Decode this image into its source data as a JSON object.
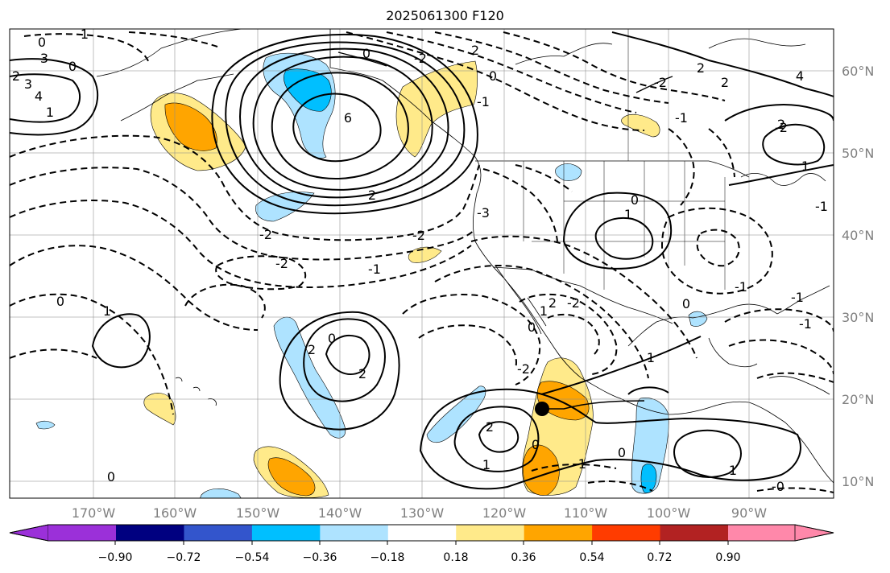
{
  "title": "2025061300 F120",
  "map": {
    "lon_ticks": [
      "170°W",
      "160°W",
      "150°W",
      "140°W",
      "130°W",
      "120°W",
      "110°W",
      "100°W",
      "90°W"
    ],
    "lat_ticks": [
      "60°N",
      "50°N",
      "40°N",
      "30°N",
      "20°N",
      "10°N"
    ],
    "extent": {
      "lon": [
        -180,
        -80
      ],
      "lat": [
        8,
        66
      ]
    },
    "gridlines": true,
    "contour_labels": [
      "1",
      "0",
      "2",
      "3",
      "4",
      "1",
      "0",
      "3",
      "0",
      "-2",
      "2",
      "-1",
      "0",
      "6",
      "2",
      "-2",
      "0",
      "1",
      "2",
      "-2",
      "-3",
      "-2",
      "-1",
      "0",
      "1",
      "2",
      "0",
      "2",
      "-2",
      "0",
      "-2",
      "1",
      "-2",
      "2",
      "0",
      "-1",
      "0",
      "0",
      "1",
      "-1",
      "0",
      "-1",
      "4",
      "2",
      "2",
      "1",
      "-1",
      "-0",
      "1",
      "2",
      "-1",
      "-2",
      "1",
      "-1"
    ],
    "marker": {
      "label": "storm-center",
      "lon": -115.5,
      "lat": 19
    }
  },
  "colorbar": {
    "ticks": [
      "−0.90",
      "−0.72",
      "−0.54",
      "−0.36",
      "−0.18",
      "0.18",
      "0.36",
      "0.54",
      "0.72",
      "0.90"
    ],
    "colors": [
      "#9b30d9",
      "#000080",
      "#3355cc",
      "#00bfff",
      "#aee3ff",
      "#ffffff",
      "#ffea8a",
      "#ffa500",
      "#ff3c00",
      "#b22222",
      "#ff88aa"
    ],
    "extend": "both"
  }
}
